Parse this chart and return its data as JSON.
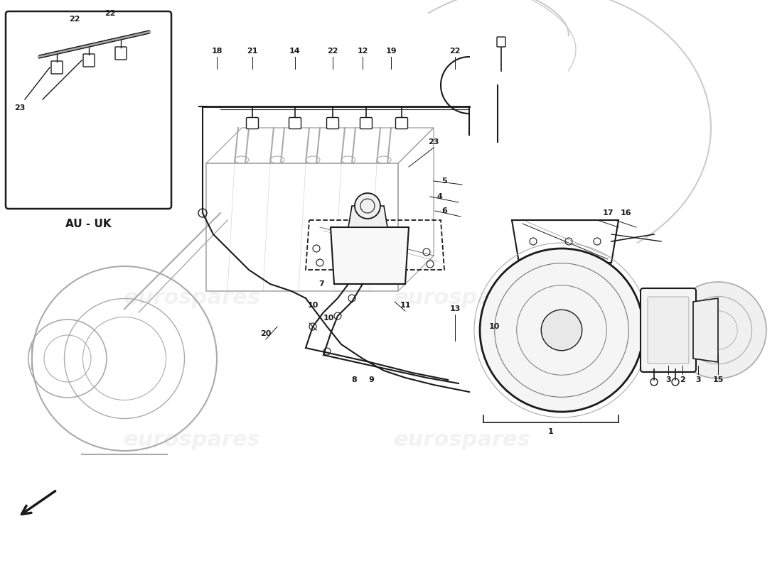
{
  "bg_color": "#ffffff",
  "line_color": "#1a1a1a",
  "gray_color": "#aaaaaa",
  "mid_gray": "#777777",
  "light_gray": "#cccccc",
  "watermark_color": "#bbbbbb",
  "watermark_text": "eurospares",
  "fig_width": 11.0,
  "fig_height": 8.0,
  "dpi": 100,
  "inset_label": "AU - UK"
}
